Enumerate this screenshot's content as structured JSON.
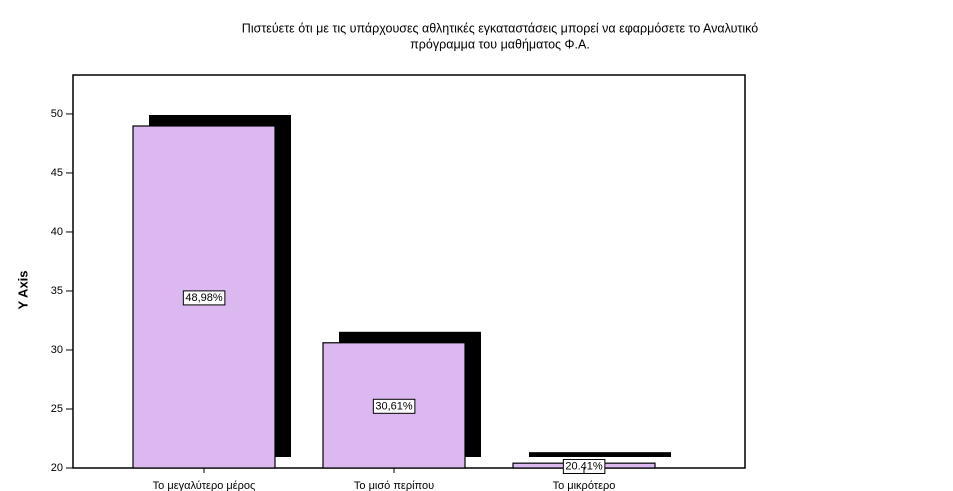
{
  "chart_data": {
    "type": "bar",
    "title": [
      "Πιστεύετε ότι με τις υπάρχουσες αθλητικές εγκαταστάσεις μπορεί να εφαρμόσετε το Αναλυτικό",
      "πρόγραμμα του μαθήματος Φ.Α."
    ],
    "y_label": "Y Axis",
    "categories": [
      "Το μεγαλύτερο μέρος",
      "Το μισό περίπου",
      "Το μικρότερο"
    ],
    "values": [
      48.98,
      30.61,
      20.41
    ],
    "value_labels": [
      "48,98%",
      "30,61%",
      "20.41%"
    ],
    "color": "#dcb8f0",
    "ylim": [
      20,
      53.3
    ],
    "yticks": [
      20,
      25,
      30,
      35,
      40,
      45,
      50
    ]
  }
}
